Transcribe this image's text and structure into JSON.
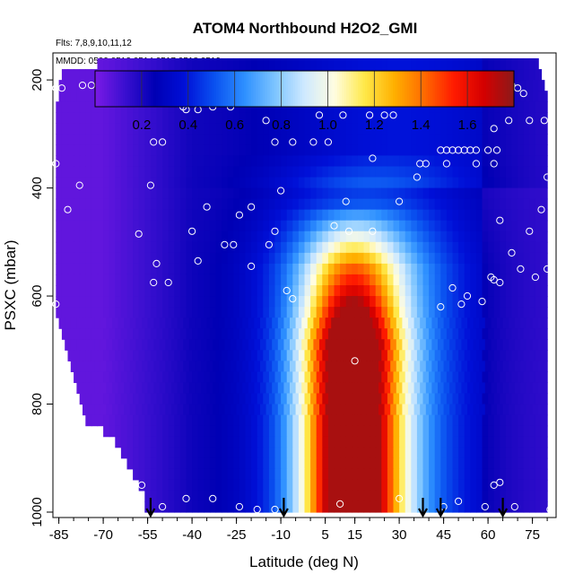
{
  "chart_data": {
    "type": "heatmap",
    "title": "ATOM4 Northbound H2O2_GMI",
    "subtitle_flights": "Flts: 7,8,9,10,11,12",
    "subtitle_dates": "MMDD: 0509,0512,0514,0517,0518,0519",
    "xlabel": "Latitude (deg N)",
    "ylabel": "PSXC (mbar)",
    "xlim": [
      -87,
      83
    ],
    "ylim": [
      1010,
      150
    ],
    "x_ticks": [
      "-85",
      "-70",
      "-55",
      "-40",
      "-25",
      "-10",
      "5",
      "15",
      "30",
      "45",
      "60",
      "75"
    ],
    "x_tick_values": [
      -85,
      -70,
      -55,
      -40,
      -25,
      -10,
      5,
      15,
      30,
      45,
      60,
      75
    ],
    "y_ticks": [
      "200",
      "400",
      "600",
      "800",
      "1000"
    ],
    "y_tick_values": [
      200,
      400,
      600,
      800,
      1000
    ],
    "colorbar": {
      "range": [
        0,
        1.8
      ],
      "ticks": [
        "0.2",
        "0.4",
        "0.6",
        "0.8",
        "1.0",
        "1.2",
        "1.4",
        "1.6"
      ],
      "tick_values": [
        0.2,
        0.4,
        0.6,
        0.8,
        1.0,
        1.2,
        1.4,
        1.6
      ],
      "colors": [
        "#7a1ae6",
        "#3a0fd0",
        "#0000b4",
        "#0010d8",
        "#0a52f0",
        "#2e90ff",
        "#7cc4ff",
        "#cfe9ff",
        "#fffde0",
        "#ffe94a",
        "#ffb000",
        "#ff6a00",
        "#ff1a00",
        "#d40000",
        "#8c1a1a"
      ]
    },
    "pressure_levels": [
      170,
      190,
      210,
      230,
      250,
      270,
      290,
      310,
      330,
      350,
      370,
      390,
      410,
      430,
      450,
      470,
      490,
      510,
      530,
      550,
      570,
      590,
      610,
      630,
      650,
      670,
      690,
      710,
      730,
      750,
      770,
      790,
      810,
      830,
      850,
      870,
      890,
      910,
      930,
      950,
      970,
      990
    ],
    "row_lat_start": [
      -72,
      -84,
      -85,
      -85,
      -86,
      -86,
      -86,
      -86,
      -86,
      -86,
      -86,
      -86,
      -86,
      -86,
      -86,
      -86,
      -86,
      -86,
      -86,
      -86,
      -86,
      -86,
      -86,
      -86,
      -85,
      -84,
      -83,
      -82,
      -81,
      -80,
      -79,
      -78,
      -77,
      -76,
      -70,
      -66,
      -64,
      -62,
      -60,
      -58,
      -56,
      -56
    ],
    "row_lat_end": [
      77,
      78,
      79,
      80,
      80,
      80,
      80,
      80,
      80,
      80,
      80,
      80,
      80,
      80,
      80,
      80,
      80,
      80,
      80,
      80,
      80,
      80,
      80,
      80,
      80,
      80,
      80,
      80,
      80,
      80,
      80,
      80,
      80,
      80,
      80,
      80,
      80,
      80,
      80,
      80,
      80,
      80
    ],
    "observations": [
      {
        "lat": -70,
        "p": 193
      },
      {
        "lat": -67,
        "p": 193
      },
      {
        "lat": -64,
        "p": 193
      },
      {
        "lat": -60,
        "p": 193
      },
      {
        "lat": -77,
        "p": 210
      },
      {
        "lat": -74,
        "p": 210
      },
      {
        "lat": -84,
        "p": 215
      },
      {
        "lat": -86,
        "p": 215
      },
      {
        "lat": -22,
        "p": 210
      },
      {
        "lat": 26,
        "p": 192
      },
      {
        "lat": 68,
        "p": 210
      },
      {
        "lat": 70,
        "p": 215
      },
      {
        "lat": 72,
        "p": 225
      },
      {
        "lat": -43,
        "p": 250
      },
      {
        "lat": -42,
        "p": 255
      },
      {
        "lat": -38,
        "p": 255
      },
      {
        "lat": -33,
        "p": 250
      },
      {
        "lat": -27,
        "p": 250
      },
      {
        "lat": -15,
        "p": 275
      },
      {
        "lat": 3,
        "p": 265
      },
      {
        "lat": 11,
        "p": 265
      },
      {
        "lat": 20,
        "p": 265
      },
      {
        "lat": 25,
        "p": 265
      },
      {
        "lat": 28,
        "p": 265
      },
      {
        "lat": 62,
        "p": 290
      },
      {
        "lat": 67,
        "p": 275
      },
      {
        "lat": 74,
        "p": 275
      },
      {
        "lat": 79,
        "p": 275
      },
      {
        "lat": -53,
        "p": 315
      },
      {
        "lat": -50,
        "p": 315
      },
      {
        "lat": -12,
        "p": 315
      },
      {
        "lat": -6,
        "p": 315
      },
      {
        "lat": 1,
        "p": 315
      },
      {
        "lat": 6,
        "p": 315
      },
      {
        "lat": 44,
        "p": 330
      },
      {
        "lat": 46,
        "p": 330
      },
      {
        "lat": 48,
        "p": 330
      },
      {
        "lat": 50,
        "p": 330
      },
      {
        "lat": 52,
        "p": 330
      },
      {
        "lat": 54,
        "p": 330
      },
      {
        "lat": 56,
        "p": 330
      },
      {
        "lat": 60,
        "p": 330
      },
      {
        "lat": 63,
        "p": 330
      },
      {
        "lat": 21,
        "p": 345
      },
      {
        "lat": 37,
        "p": 355
      },
      {
        "lat": 39,
        "p": 355
      },
      {
        "lat": 46,
        "p": 355
      },
      {
        "lat": 56,
        "p": 355
      },
      {
        "lat": 62,
        "p": 355
      },
      {
        "lat": -86,
        "p": 355
      },
      {
        "lat": 36,
        "p": 380
      },
      {
        "lat": 80,
        "p": 380
      },
      {
        "lat": -78,
        "p": 395
      },
      {
        "lat": -54,
        "p": 395
      },
      {
        "lat": -10,
        "p": 405
      },
      {
        "lat": 12,
        "p": 425
      },
      {
        "lat": 30,
        "p": 425
      },
      {
        "lat": -35,
        "p": 435
      },
      {
        "lat": -20,
        "p": 435
      },
      {
        "lat": -82,
        "p": 440
      },
      {
        "lat": 78,
        "p": 440
      },
      {
        "lat": -24,
        "p": 450
      },
      {
        "lat": 64,
        "p": 460
      },
      {
        "lat": -40,
        "p": 480
      },
      {
        "lat": -58,
        "p": 485
      },
      {
        "lat": -12,
        "p": 480
      },
      {
        "lat": 8,
        "p": 470
      },
      {
        "lat": 13,
        "p": 480
      },
      {
        "lat": 21,
        "p": 480
      },
      {
        "lat": 74,
        "p": 480
      },
      {
        "lat": -26,
        "p": 505
      },
      {
        "lat": -29,
        "p": 505
      },
      {
        "lat": -14,
        "p": 505
      },
      {
        "lat": 68,
        "p": 520
      },
      {
        "lat": -52,
        "p": 540
      },
      {
        "lat": -38,
        "p": 535
      },
      {
        "lat": -20,
        "p": 545
      },
      {
        "lat": 71,
        "p": 550
      },
      {
        "lat": 80,
        "p": 550
      },
      {
        "lat": 61,
        "p": 565
      },
      {
        "lat": 62,
        "p": 570
      },
      {
        "lat": -53,
        "p": 575
      },
      {
        "lat": -48,
        "p": 575
      },
      {
        "lat": 64,
        "p": 575
      },
      {
        "lat": 76,
        "p": 565
      },
      {
        "lat": -8,
        "p": 590
      },
      {
        "lat": 48,
        "p": 585
      },
      {
        "lat": 53,
        "p": 600
      },
      {
        "lat": -6,
        "p": 605
      },
      {
        "lat": 44,
        "p": 620
      },
      {
        "lat": 51,
        "p": 615
      },
      {
        "lat": 58,
        "p": 610
      },
      {
        "lat": -86,
        "p": 615
      },
      {
        "lat": 15,
        "p": 720
      },
      {
        "lat": -81,
        "p": 815
      },
      {
        "lat": -57,
        "p": 950
      },
      {
        "lat": 62,
        "p": 950
      },
      {
        "lat": 64,
        "p": 945
      },
      {
        "lat": -42,
        "p": 975
      },
      {
        "lat": -33,
        "p": 975
      },
      {
        "lat": -24,
        "p": 990
      },
      {
        "lat": -18,
        "p": 995
      },
      {
        "lat": -12,
        "p": 995
      },
      {
        "lat": 10,
        "p": 985
      },
      {
        "lat": 30,
        "p": 975
      },
      {
        "lat": 45,
        "p": 990
      },
      {
        "lat": 50,
        "p": 980
      },
      {
        "lat": 59,
        "p": 990
      },
      {
        "lat": 69,
        "p": 990
      },
      {
        "lat": 81,
        "p": 995
      },
      {
        "lat": -50,
        "p": 990
      }
    ],
    "arrow_latitudes": [
      -54,
      -9,
      38,
      44,
      65
    ]
  }
}
